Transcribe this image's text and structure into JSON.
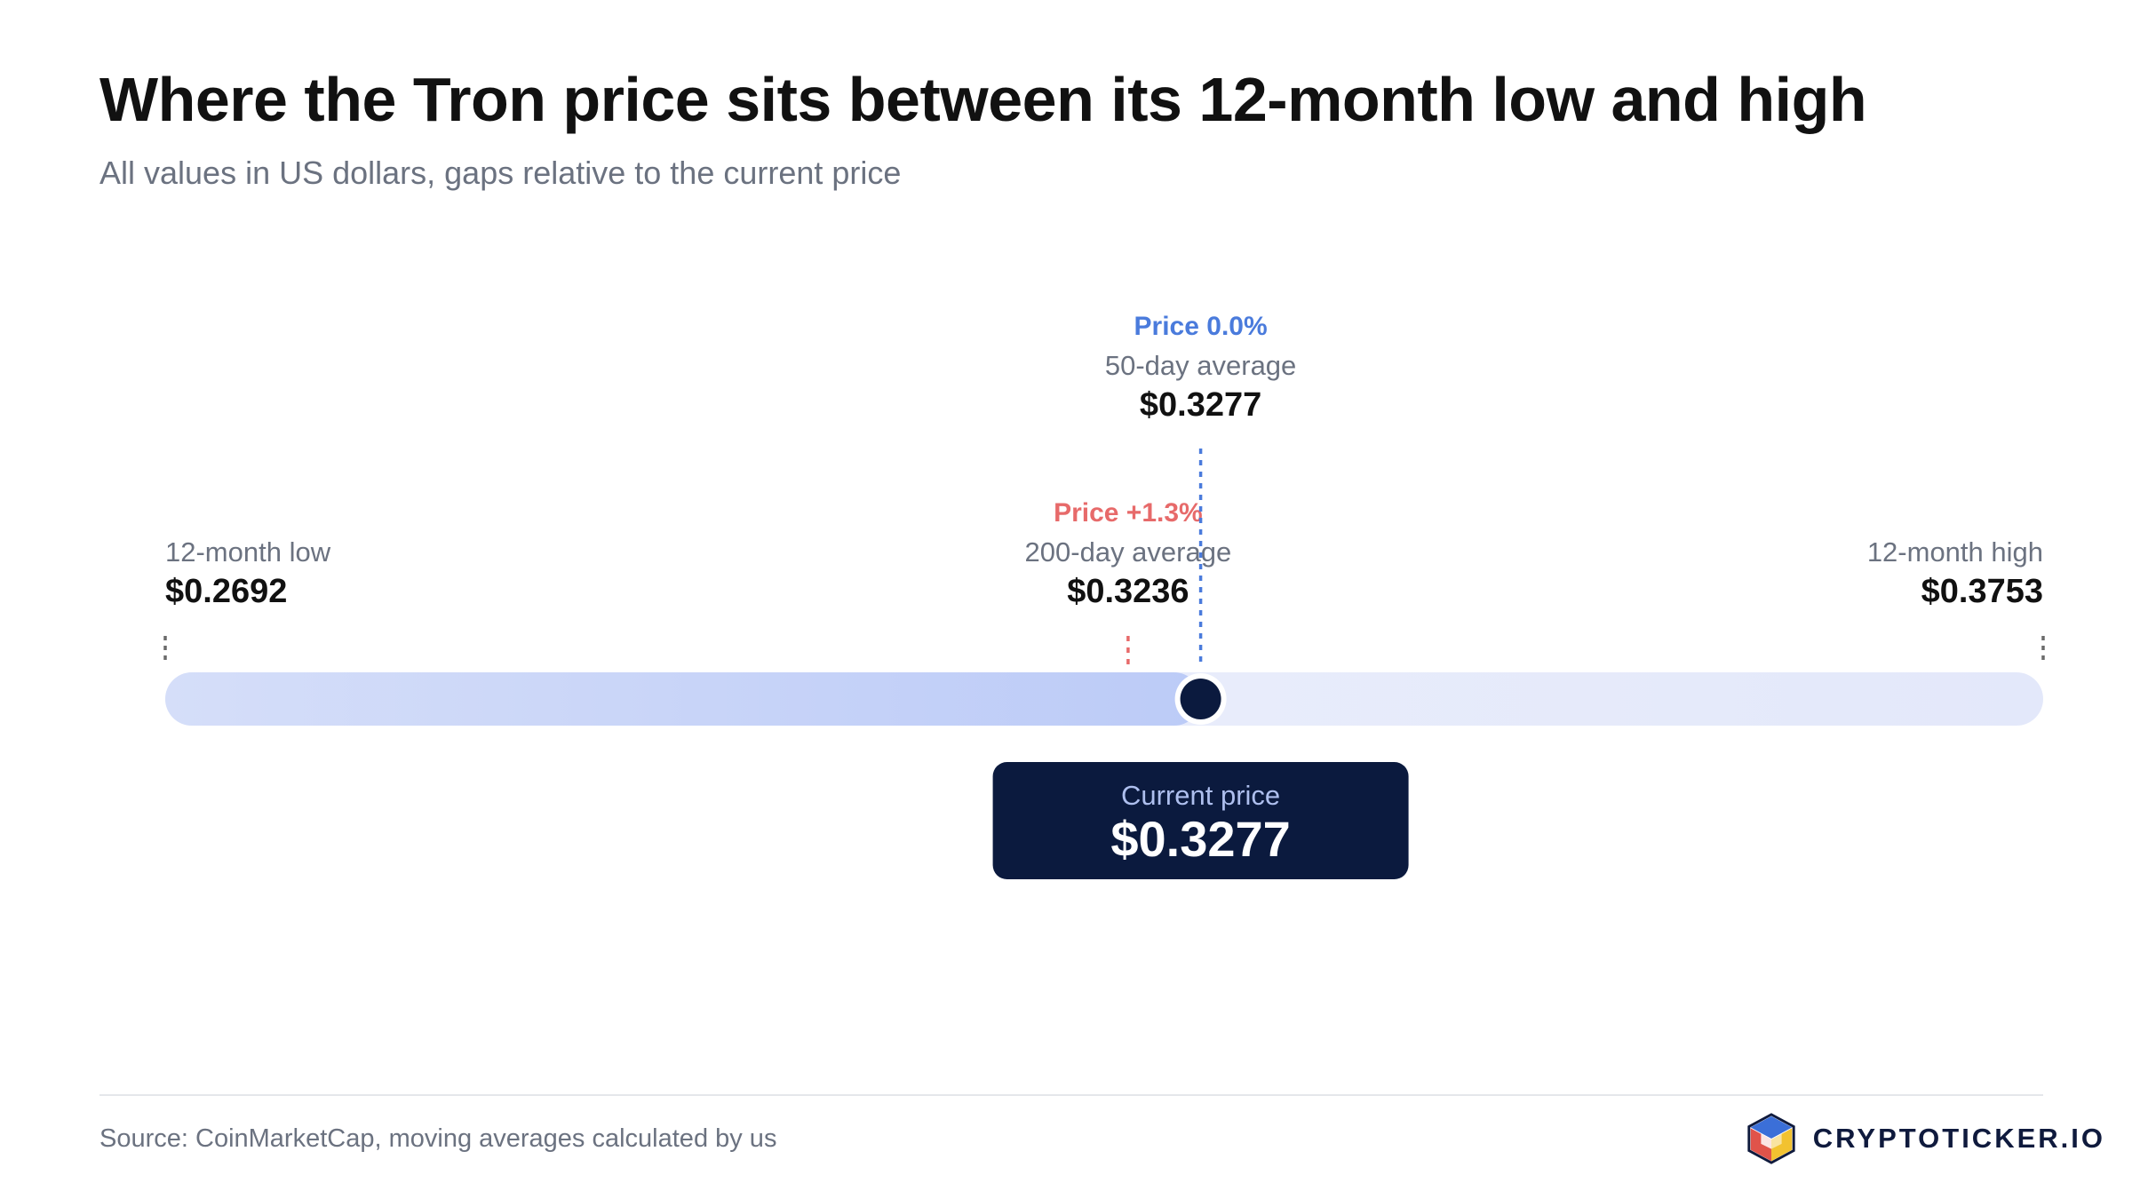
{
  "header": {
    "title": "Where the Tron price sits between its 12-month low and high",
    "subtitle": "All values in US dollars, gaps relative to the current price"
  },
  "chart_data": {
    "type": "range",
    "range_min": 0.2692,
    "range_max": 0.3753,
    "endpoints": [
      {
        "label": "12-month low",
        "value_text": "$0.2692",
        "value": 0.2692,
        "side": "left"
      },
      {
        "label": "12-month high",
        "value_text": "$0.3753",
        "value": 0.3753,
        "side": "right"
      }
    ],
    "markers": [
      {
        "label": "200-day average",
        "value": 0.3236,
        "value_text": "$0.3236",
        "gap_text": "Price +1.3%",
        "color": "#e76a6a",
        "tier": "low"
      },
      {
        "label": "50-day average",
        "value": 0.3277,
        "value_text": "$0.3277",
        "gap_text": "Price 0.0%",
        "color": "#4a7bdc",
        "tier": "high"
      }
    ],
    "current": {
      "label": "Current price",
      "value": 0.3277,
      "value_text": "$0.3277"
    },
    "colors": {
      "track": "#e3e8fa",
      "fill_start": "#d5def9",
      "fill_end": "#bccbf7",
      "dot": "#0b1a3e",
      "callout_bg": "#0b1a3e",
      "callout_label": "#aebfee",
      "endpoint_tick": "#6b6b6b"
    }
  },
  "footer": {
    "source": "Source: CoinMarketCap, moving averages calculated by us",
    "brand": "CRYPTOTICKER.IO",
    "brand_icon": "cube-logo-icon"
  }
}
